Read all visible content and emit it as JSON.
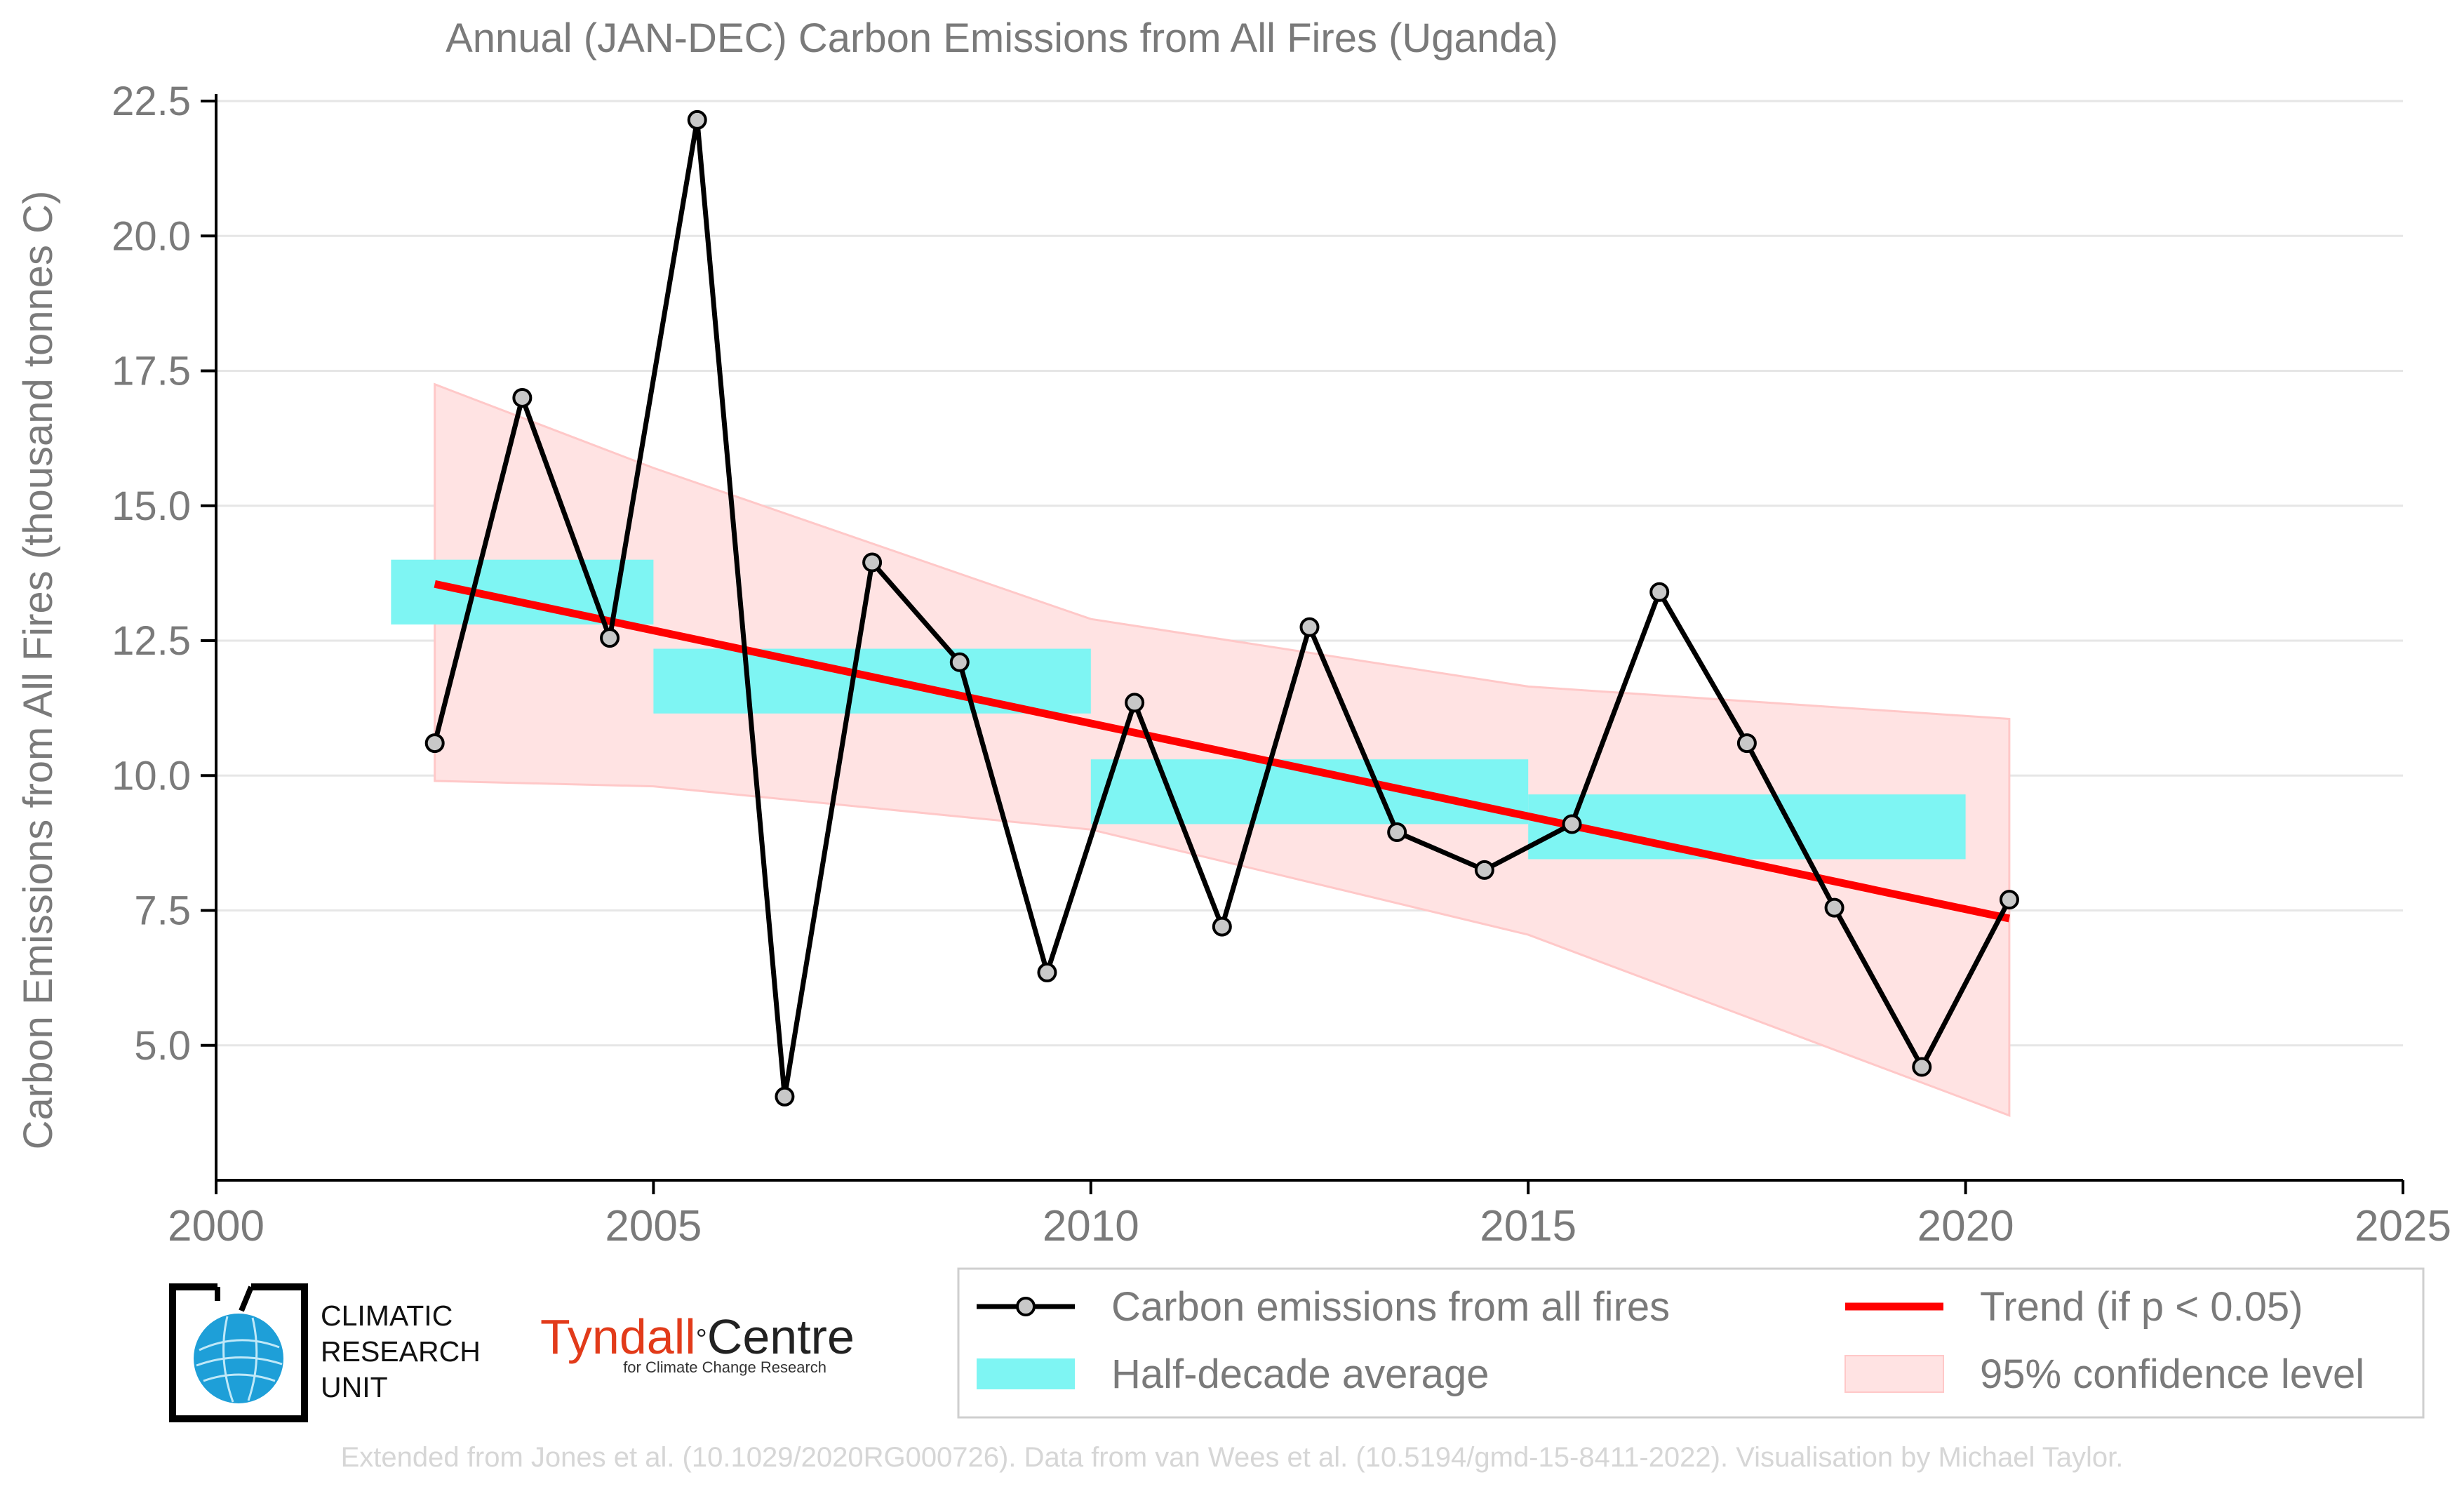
{
  "colors": {
    "emissions_line": "#000000",
    "marker_fill": "#c8c8c8",
    "half_decade": "#7ef5f3",
    "trend": "#ff0000",
    "confidence_fill": "#ffe3e3",
    "confidence_edge": "#ffc8c8",
    "text": "#7a7a7a",
    "grid": "#e6e6e6",
    "cru_blue": "#1e9fd8",
    "tyndall_red": "#e23b1a"
  },
  "logos": {
    "cru_lines": [
      "CLIMATIC",
      "RESEARCH",
      "UNIT"
    ],
    "tyndall_prefix": "Tyndall",
    "tyndall_degree": "°",
    "tyndall_suffix": "Centre",
    "tyndall_sub": "for Climate Change Research"
  },
  "footer": {
    "credit": "Extended from Jones et al. (10.1029/2020RG000726). Data from van Wees et al. (10.5194/gmd-15-8411-2022). Visualisation by Michael Taylor."
  },
  "chart_data": {
    "type": "line",
    "title": "Annual (JAN-DEC) Carbon Emissions from All Fires (Uganda)",
    "xlabel": "",
    "ylabel": "Carbon Emissions from All Fires (thousand tonnes C)",
    "xlim": [
      2000,
      2025
    ],
    "ylim": [
      2.5,
      22.5
    ],
    "x_ticks": [
      "2000",
      "2005",
      "2010",
      "2015",
      "2020",
      "2025"
    ],
    "y_ticks": [
      "5.0",
      "7.5",
      "10.0",
      "12.5",
      "15.0",
      "17.5",
      "20.0",
      "22.5"
    ],
    "grid": "horizontal",
    "legend": {
      "placement": "bottom-right",
      "entries": [
        "Carbon emissions from all fires",
        "Trend (if p < 0.05)",
        "Half-decade average",
        "95% confidence level"
      ]
    },
    "series": [
      {
        "name": "Carbon emissions from all fires",
        "x": [
          2002.5,
          2003.5,
          2004.5,
          2005.5,
          2006.5,
          2007.5,
          2008.5,
          2009.5,
          2010.5,
          2011.5,
          2012.5,
          2013.5,
          2014.5,
          2015.5,
          2016.5,
          2017.5,
          2018.5,
          2019.5,
          2020.5
        ],
        "values": [
          10.6,
          17.0,
          12.55,
          22.15,
          4.05,
          13.95,
          12.1,
          6.35,
          11.35,
          7.2,
          12.75,
          8.95,
          8.25,
          9.1,
          13.4,
          10.6,
          7.55,
          4.6,
          7.7
        ]
      },
      {
        "name": "Half-decade average",
        "segments": [
          {
            "x_start": 2002,
            "x_end": 2005,
            "value": 13.4
          },
          {
            "x_start": 2005,
            "x_end": 2010,
            "value": 11.75
          },
          {
            "x_start": 2010,
            "x_end": 2015,
            "value": 9.7
          },
          {
            "x_start": 2015,
            "x_end": 2020,
            "value": 9.05
          }
        ]
      },
      {
        "name": "Trend (if p < 0.05)",
        "x": [
          2002.5,
          2020.5
        ],
        "values": [
          13.55,
          7.35
        ]
      },
      {
        "name": "95% confidence level",
        "x": [
          2002.5,
          2005,
          2010,
          2015,
          2020.5
        ],
        "upper": [
          17.25,
          15.7,
          12.9,
          11.65,
          11.05
        ],
        "lower": [
          9.9,
          9.8,
          9.0,
          7.05,
          3.7
        ]
      }
    ]
  }
}
